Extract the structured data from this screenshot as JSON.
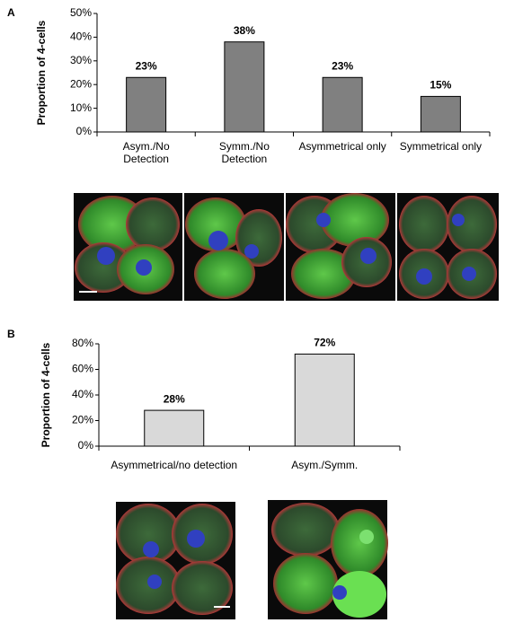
{
  "chart_data": [
    {
      "type": "bar",
      "label": "A",
      "y_label": "Proportion of 4-cells",
      "categories": [
        "Asym./No Detection",
        "Symm./No Detection",
        "Asymmetrical only",
        "Symmetrical only"
      ],
      "values": [
        23,
        38,
        23,
        15
      ],
      "value_labels": [
        "23%",
        "38%",
        "23%",
        "15%"
      ],
      "color": "#808080",
      "ylim": [
        0,
        50
      ],
      "yticks": [
        {
          "value": 0,
          "label": "0%"
        },
        {
          "value": 10,
          "label": "10%"
        },
        {
          "value": 20,
          "label": "20%"
        },
        {
          "value": 30,
          "label": "30%"
        },
        {
          "value": 40,
          "label": "40%"
        },
        {
          "value": 50,
          "label": "50%"
        }
      ]
    },
    {
      "type": "bar",
      "label": "B",
      "y_label": "Proportion of 4-cells",
      "categories": [
        "Asymmetrical/no detection",
        "Asym./Symm."
      ],
      "values": [
        28,
        72
      ],
      "value_labels": [
        "28%",
        "72%"
      ],
      "color": "#d9d9d9",
      "ylim": [
        0,
        80
      ],
      "yticks": [
        {
          "value": 0,
          "label": "0%"
        },
        {
          "value": 20,
          "label": "20%"
        },
        {
          "value": 40,
          "label": "40%"
        },
        {
          "value": 60,
          "label": "60%"
        },
        {
          "value": 80,
          "label": "80%"
        }
      ]
    }
  ]
}
